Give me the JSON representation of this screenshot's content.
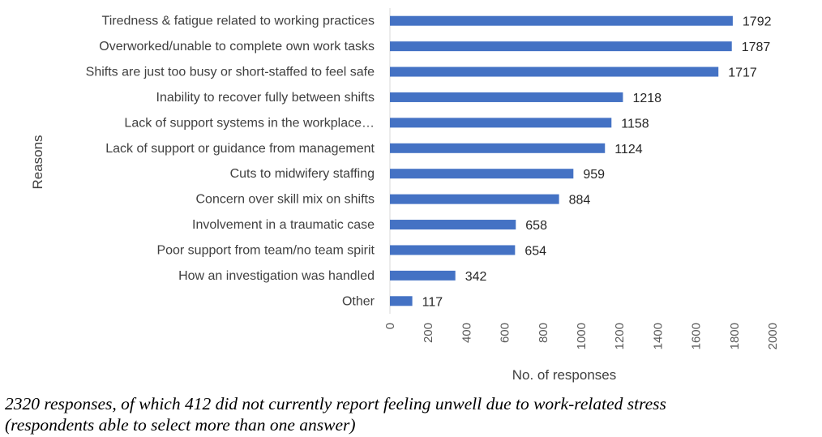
{
  "chart_data": {
    "type": "bar",
    "orientation": "horizontal",
    "categories": [
      "Tiredness & fatigue related to working practices",
      "Overworked/unable to complete own work tasks",
      "Shifts are just too busy or short-staffed to feel safe",
      "Inability to recover fully between shifts",
      "Lack of support systems in the workplace…",
      "Lack of support or guidance from management",
      "Cuts to midwifery staffing",
      "Concern over skill mix on shifts",
      "Involvement in a traumatic case",
      "Poor support from team/no team spirit",
      "How an investigation was handled",
      "Other"
    ],
    "values": [
      1792,
      1787,
      1717,
      1218,
      1158,
      1124,
      959,
      884,
      658,
      654,
      342,
      117
    ],
    "xlabel": "No. of responses",
    "ylabel": "Reasons",
    "xlim": [
      0,
      2000
    ],
    "xticks": [
      "0",
      "200",
      "400",
      "600",
      "800",
      "1000",
      "1200",
      "1400",
      "1600",
      "1800",
      "2000"
    ],
    "grid": false,
    "bar_color": "#4472C4"
  },
  "caption": {
    "line1": "2320 responses, of which 412 did not currently report feeling unwell due to work-related stress",
    "line2": "(respondents able to select more than one answer)"
  }
}
